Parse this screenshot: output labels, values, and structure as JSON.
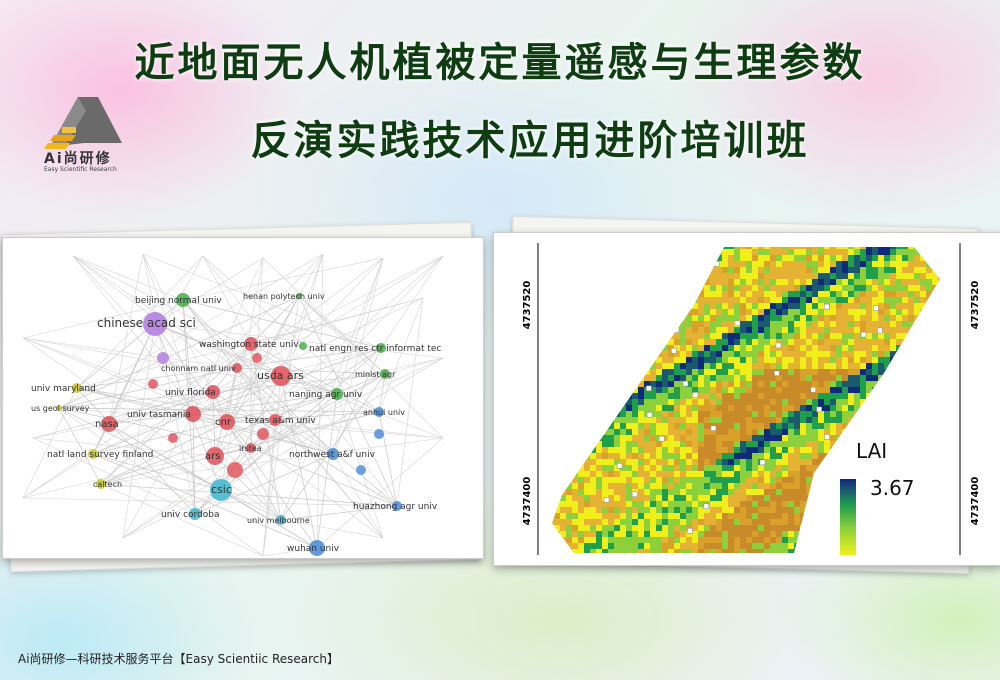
{
  "header": {
    "title_line1": "近地面无人机植被定量遥感与生理参数",
    "title_line2": "反演实践技术应用进阶培训班"
  },
  "logo": {
    "name": "Ai尚研修",
    "subtitle": "Easy Scientific Research",
    "icon": "house-triangle-logo"
  },
  "network_panel": {
    "nodes": [
      {
        "label": "beijing normal univ",
        "color": "#4caf50"
      },
      {
        "label": "henan polytech univ",
        "color": "#4caf50"
      },
      {
        "label": "chinese acad sci",
        "color": "#b37fe0"
      },
      {
        "label": "washington state univ",
        "color": "#e0585f"
      },
      {
        "label": "natl engn res ctr informat tec",
        "color": "#4caf50"
      },
      {
        "label": "chonnam natl univ",
        "color": "#e0585f"
      },
      {
        "label": "usda ars",
        "color": "#e0585f"
      },
      {
        "label": "minist agr",
        "color": "#4caf50"
      },
      {
        "label": "univ maryland",
        "color": "#c9c930"
      },
      {
        "label": "univ florida",
        "color": "#e0585f"
      },
      {
        "label": "nanjing agr univ",
        "color": "#4caf50"
      },
      {
        "label": "us geol survey",
        "color": "#c9c930"
      },
      {
        "label": "univ tasmania",
        "color": "#e0585f"
      },
      {
        "label": "anhui univ",
        "color": "#4f8fd9"
      },
      {
        "label": "nasa",
        "color": "#e0585f"
      },
      {
        "label": "cnr",
        "color": "#e0585f"
      },
      {
        "label": "texas a&m univ",
        "color": "#e0585f"
      },
      {
        "label": "irstea",
        "color": "#e0585f"
      },
      {
        "label": "natl land survey finland",
        "color": "#c9c930"
      },
      {
        "label": "ars",
        "color": "#e0585f"
      },
      {
        "label": "northwest a&f univ",
        "color": "#4f8fd9"
      },
      {
        "label": "caltech",
        "color": "#c9c930"
      },
      {
        "label": "csic",
        "color": "#46b8d0"
      },
      {
        "label": "huazhong agr univ",
        "color": "#4f8fd9"
      },
      {
        "label": "univ cordoba",
        "color": "#46b8d0"
      },
      {
        "label": "univ melbourne",
        "color": "#46b8d0"
      },
      {
        "label": "wuhan univ",
        "color": "#4f8fd9"
      }
    ]
  },
  "lai_map": {
    "y_tick_top": "4737520",
    "y_tick_bottom": "4737400",
    "legend_title": "LAI",
    "legend_max": "3.67",
    "colormap": [
      "#f1ef1a",
      "#8cd13c",
      "#1f9e4b",
      "#1b5a6e",
      "#102a7a"
    ],
    "background_colors": [
      "#d9a02a",
      "#c98a2a",
      "#e6b233"
    ]
  },
  "footer": {
    "text": "Ai尚研修—科研技术服务平台【Easy Scientiic Research】"
  }
}
